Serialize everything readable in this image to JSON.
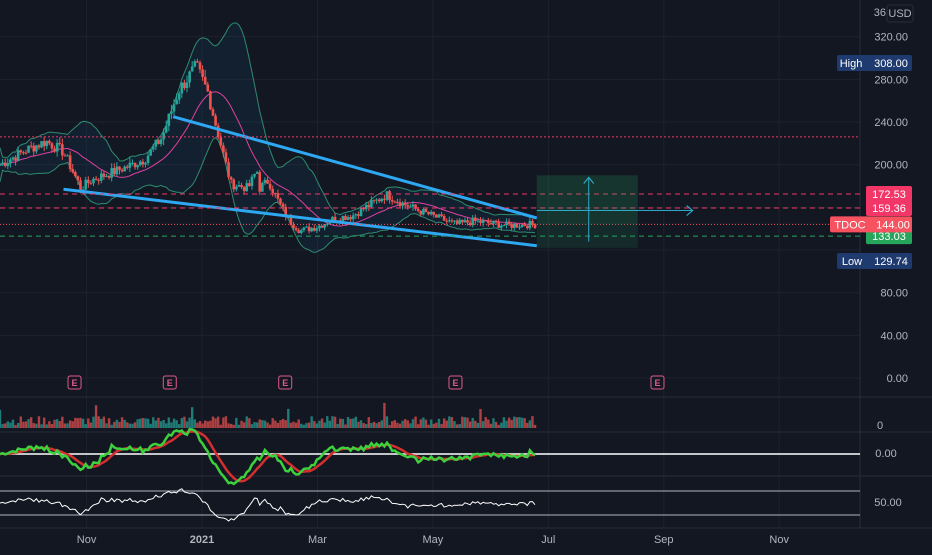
{
  "chart_data": {
    "type": "candlestick",
    "symbol": "TDOC",
    "currency": "USD",
    "price_scale_top_label": "36",
    "price_ticks": [
      "320.00",
      "280.00",
      "240.00",
      "200.00",
      "80.00",
      "40.00",
      "0.00"
    ],
    "price_tick_values": [
      320,
      280,
      240,
      200,
      80,
      40,
      0
    ],
    "ylim": [
      0,
      345
    ],
    "x_labels": [
      "Nov",
      "2021",
      "Mar",
      "May",
      "Jul",
      "Sep",
      "Nov"
    ],
    "x_label_months": [
      1,
      3,
      5,
      7,
      9,
      11,
      13
    ],
    "xlim_months": [
      -0.5,
      14.4
    ],
    "last_bar_month": 8.8,
    "high": {
      "label": "High",
      "value": "308.00"
    },
    "low": {
      "label": "Low",
      "value": "129.74"
    },
    "levels": [
      {
        "value": "172.53",
        "color": "#f23668"
      },
      {
        "value": "159.36",
        "color": "#f23668"
      },
      {
        "value": "133.03",
        "color": "#26a65b"
      }
    ],
    "last_price": {
      "symbol": "TDOC",
      "value": "144.00",
      "color": "#f7525f"
    },
    "earnings_label": "E",
    "earnings_months": [
      0.8,
      2.45,
      4.45,
      7.4,
      10.9
    ],
    "price_series": {
      "months": [
        -0.5,
        0.0,
        0.3,
        0.6,
        0.9,
        1.1,
        1.4,
        1.7,
        2.0,
        2.3,
        2.6,
        2.9,
        3.1,
        3.25,
        3.5,
        3.8,
        3.95,
        4.0,
        4.15,
        4.3,
        4.5,
        4.7,
        5.0,
        5.3,
        5.6,
        5.9,
        6.2,
        6.5,
        6.8,
        7.1,
        7.4,
        7.7,
        8.0,
        8.3,
        8.6,
        8.8
      ],
      "close": [
        200,
        215,
        222,
        212,
        178,
        186,
        192,
        198,
        205,
        225,
        270,
        292,
        268,
        235,
        182,
        178,
        195,
        178,
        185,
        168,
        148,
        138,
        142,
        150,
        152,
        162,
        172,
        163,
        156,
        150,
        144,
        147,
        145,
        143,
        144,
        144
      ]
    },
    "volume_axis": "0",
    "macd_axis": "0.00",
    "rsi_axis": "50.00"
  }
}
